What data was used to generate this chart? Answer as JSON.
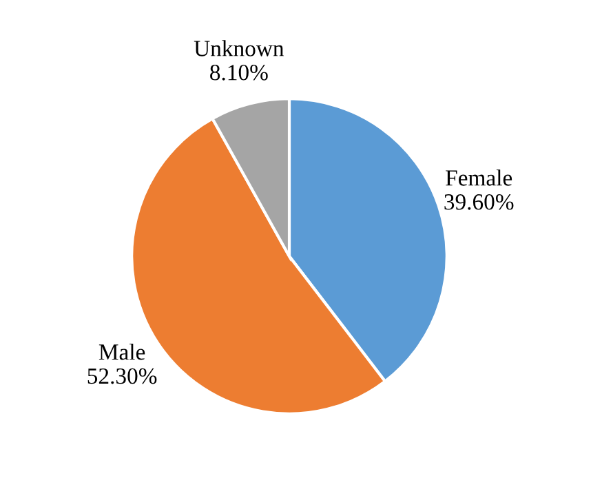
{
  "chart_data": {
    "type": "pie",
    "categories": [
      "Female",
      "Male",
      "Unknown"
    ],
    "values": [
      39.6,
      52.3,
      8.1
    ],
    "value_labels": [
      "39.60%",
      "52.30%",
      "8.10%"
    ],
    "colors": [
      "#5b9bd5",
      "#ed7d31",
      "#a5a5a5"
    ],
    "legend": false
  }
}
